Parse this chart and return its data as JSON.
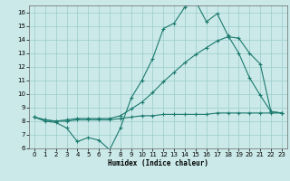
{
  "xlabel": "Humidex (Indice chaleur)",
  "bg_color": "#cce9e9",
  "grid_color": "#99cccc",
  "line_color": "#1a7a6e",
  "x_min": 0,
  "x_max": 23,
  "y_min": 6,
  "y_max": 16.5,
  "x_ticks": [
    0,
    1,
    2,
    3,
    4,
    5,
    6,
    7,
    8,
    9,
    10,
    11,
    12,
    13,
    14,
    15,
    16,
    17,
    18,
    19,
    20,
    21,
    22,
    23
  ],
  "y_ticks": [
    6,
    7,
    8,
    9,
    10,
    11,
    12,
    13,
    14,
    15,
    16
  ],
  "line1_x": [
    0,
    1,
    2,
    3,
    4,
    5,
    6,
    7,
    8,
    9,
    10,
    11,
    12,
    13,
    14,
    15,
    16,
    17,
    18,
    19,
    20,
    21,
    22,
    23
  ],
  "line1_y": [
    8.3,
    8.0,
    7.9,
    7.5,
    6.5,
    6.8,
    6.6,
    5.9,
    7.5,
    9.7,
    11.0,
    12.6,
    14.8,
    15.2,
    16.4,
    16.8,
    15.3,
    15.9,
    14.3,
    13.0,
    11.2,
    9.9,
    8.7,
    8.6
  ],
  "line2_x": [
    0,
    1,
    2,
    3,
    4,
    5,
    6,
    7,
    8,
    9,
    10,
    11,
    12,
    13,
    14,
    15,
    16,
    17,
    18,
    19,
    20,
    21,
    22,
    23
  ],
  "line2_y": [
    8.3,
    8.1,
    8.0,
    8.1,
    8.2,
    8.2,
    8.2,
    8.2,
    8.4,
    8.9,
    9.4,
    10.1,
    10.9,
    11.6,
    12.3,
    12.9,
    13.4,
    13.9,
    14.2,
    14.1,
    13.0,
    12.2,
    8.7,
    8.6
  ],
  "line3_x": [
    0,
    1,
    2,
    3,
    4,
    5,
    6,
    7,
    8,
    9,
    10,
    11,
    12,
    13,
    14,
    15,
    16,
    17,
    18,
    19,
    20,
    21,
    22,
    23
  ],
  "line3_y": [
    8.3,
    8.1,
    8.0,
    8.0,
    8.1,
    8.1,
    8.1,
    8.1,
    8.2,
    8.3,
    8.4,
    8.4,
    8.5,
    8.5,
    8.5,
    8.5,
    8.5,
    8.6,
    8.6,
    8.6,
    8.6,
    8.6,
    8.6,
    8.6
  ]
}
